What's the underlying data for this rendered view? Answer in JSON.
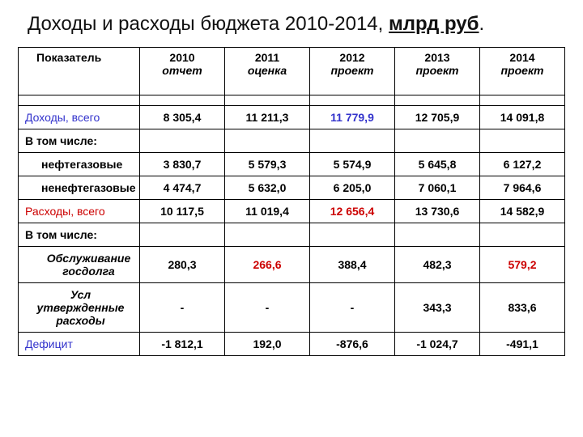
{
  "title_prefix": "Доходы и расходы бюджета 2010-2014, ",
  "title_underline": "млрд руб",
  "title_suffix": ".",
  "header": {
    "indicator": "Показатель",
    "y2010": "2010",
    "y2010_sub": "отчет",
    "y2011": "2011",
    "y2011_sub": "оценка",
    "y2012": "2012",
    "y2012_sub": "проект",
    "y2013": "2013",
    "y2013_sub": "проект",
    "y2014": "2014",
    "y2014_sub": "проект"
  },
  "rows": {
    "income_total": {
      "label": "Доходы, всего",
      "v": [
        "8 305,4",
        "11 211,3",
        "11 779,9",
        "12 705,9",
        "14 091,8"
      ]
    },
    "including1": {
      "label": "В том числе:"
    },
    "oil_gas": {
      "label": "нефтегазовые",
      "v": [
        "3 830,7",
        "5 579,3",
        "5 574,9",
        "5 645,8",
        "6 127,2"
      ]
    },
    "non_oil_gas": {
      "label": "ненефтегазовые",
      "v": [
        "4 474,7",
        "5 632,0",
        "6 205,0",
        "7 060,1",
        "7 964,6"
      ]
    },
    "expense_total": {
      "label": "Расходы, всего",
      "v": [
        "10 117,5",
        "11 019,4",
        "12 656,4",
        "13 730,6",
        "14 582,9"
      ]
    },
    "including2": {
      "label": "В том числе:"
    },
    "debt_service": {
      "label": "Обслуживание госдолга",
      "v": [
        "280,3",
        "266,6",
        "388,4",
        "482,3",
        "579,2"
      ]
    },
    "cond_approved": {
      "label": "Усл утвержденные расходы",
      "v": [
        "-",
        "-",
        "-",
        "343,3",
        "833,6"
      ]
    },
    "deficit": {
      "label": "Дефицит",
      "v": [
        "-1 812,1",
        "192,0",
        "-876,6",
        "-1 024,7",
        "-491,1"
      ]
    }
  },
  "colors": {
    "blue": "#3333cc",
    "red": "#cc0000",
    "text": "#000000"
  }
}
